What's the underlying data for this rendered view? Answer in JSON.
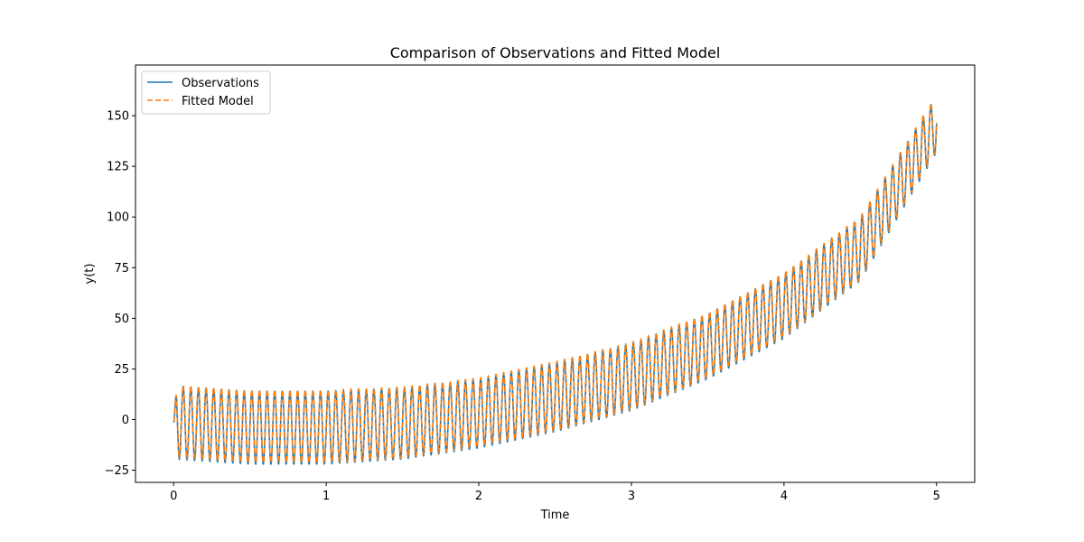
{
  "chart_data": {
    "type": "line",
    "title": "Comparison of Observations and Fitted Model",
    "xlabel": "Time",
    "ylabel": "y(t)",
    "xlim": [
      -0.25,
      5.25
    ],
    "ylim": [
      -31,
      175
    ],
    "xticks": [
      0,
      1,
      2,
      3,
      4,
      5
    ],
    "yticks": [
      -25,
      0,
      25,
      50,
      75,
      100,
      125,
      150
    ],
    "grid": false,
    "legend_position": "top-left",
    "trend": {
      "description": "oscillating signal around an increasing trend",
      "x": [
        0,
        0.5,
        1.0,
        1.5,
        2.0,
        2.5,
        3.0,
        3.5,
        4.0,
        4.5,
        5.0
      ],
      "center": [
        -1.5,
        -4,
        -4,
        -2,
        3,
        11,
        21,
        36,
        56,
        84,
        146
      ],
      "amplitude": [
        18,
        18,
        18,
        17.5,
        17,
        17,
        16.5,
        16,
        16,
        15.5,
        14
      ]
    },
    "oscillations_per_unit": 20,
    "series": [
      {
        "name": "Observations",
        "color": "#1f77b4",
        "style": "solid",
        "amplitude_scale": 1.0,
        "offset": 0
      },
      {
        "name": "Fitted Model",
        "color": "#ff7f0e",
        "style": "dashed",
        "amplitude_scale": 1.0,
        "offset": 0.6
      }
    ]
  }
}
